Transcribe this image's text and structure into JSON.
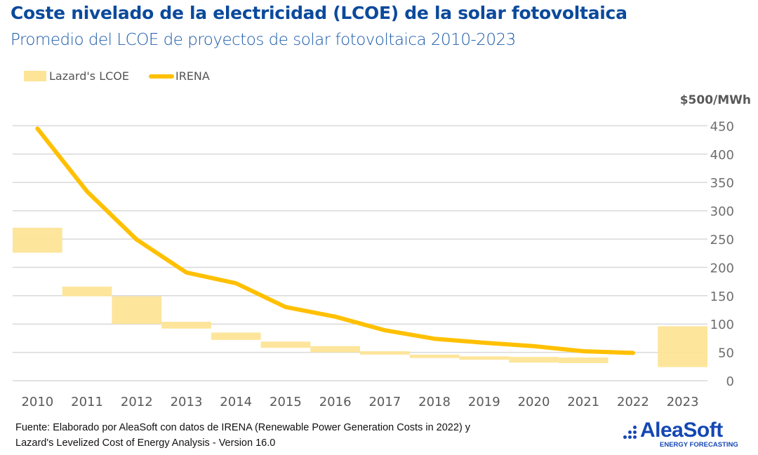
{
  "header": {
    "title": "Coste nivelado de la electricidad (LCOE) de la solar fotovoltaica",
    "subtitle": "Promedio del LCOE de proyectos de solar fotovoltaica 2010-2023"
  },
  "legend": {
    "lazard": "Lazard's LCOE",
    "irena": "IRENA"
  },
  "footer": {
    "line1": "Fuente: Elaborado por AleaSoft con datos de IRENA (Renewable Power Generation Costs in 2022) y",
    "line2": "Lazard's Levelized Cost of Energy Analysis - Version 16.0"
  },
  "logo": {
    "name": "AleaSoft",
    "tagline": "ENERGY FORECASTING"
  },
  "colors": {
    "title": "#0b4a9c",
    "irena_line": "#ffc000",
    "lazard_band": "#fde496",
    "grid": "#d9d9d9",
    "axis_text": "#595959",
    "logo": "#1447b4"
  },
  "chart_data": {
    "type": "line",
    "title": "Coste nivelado de la electricidad (LCOE) de la solar fotovoltaica",
    "subtitle": "Promedio del LCOE de proyectos de solar fotovoltaica 2010-2023",
    "xlabel": "",
    "ylabel": "$500/MWh",
    "ylim": [
      0,
      500
    ],
    "yticks": [
      0,
      50,
      100,
      150,
      200,
      250,
      300,
      350,
      400,
      450
    ],
    "y_axis_position": "right",
    "grid": true,
    "legend_position": "top-left",
    "categories": [
      "2010",
      "2011",
      "2012",
      "2013",
      "2014",
      "2015",
      "2016",
      "2017",
      "2018",
      "2019",
      "2020",
      "2021",
      "2022",
      "2023"
    ],
    "series": [
      {
        "name": "IRENA",
        "kind": "line",
        "values": [
          445,
          334,
          249,
          191,
          172,
          130,
          113,
          89,
          74,
          67,
          61,
          52,
          49,
          null
        ]
      },
      {
        "name": "Lazard's LCOE",
        "kind": "range-band",
        "low": [
          226,
          149,
          100,
          92,
          72,
          58,
          50,
          46,
          40,
          37,
          32,
          31,
          null,
          24
        ],
        "high": [
          270,
          166,
          149,
          104,
          85,
          69,
          61,
          52,
          46,
          43,
          42,
          41,
          null,
          96
        ]
      }
    ]
  }
}
